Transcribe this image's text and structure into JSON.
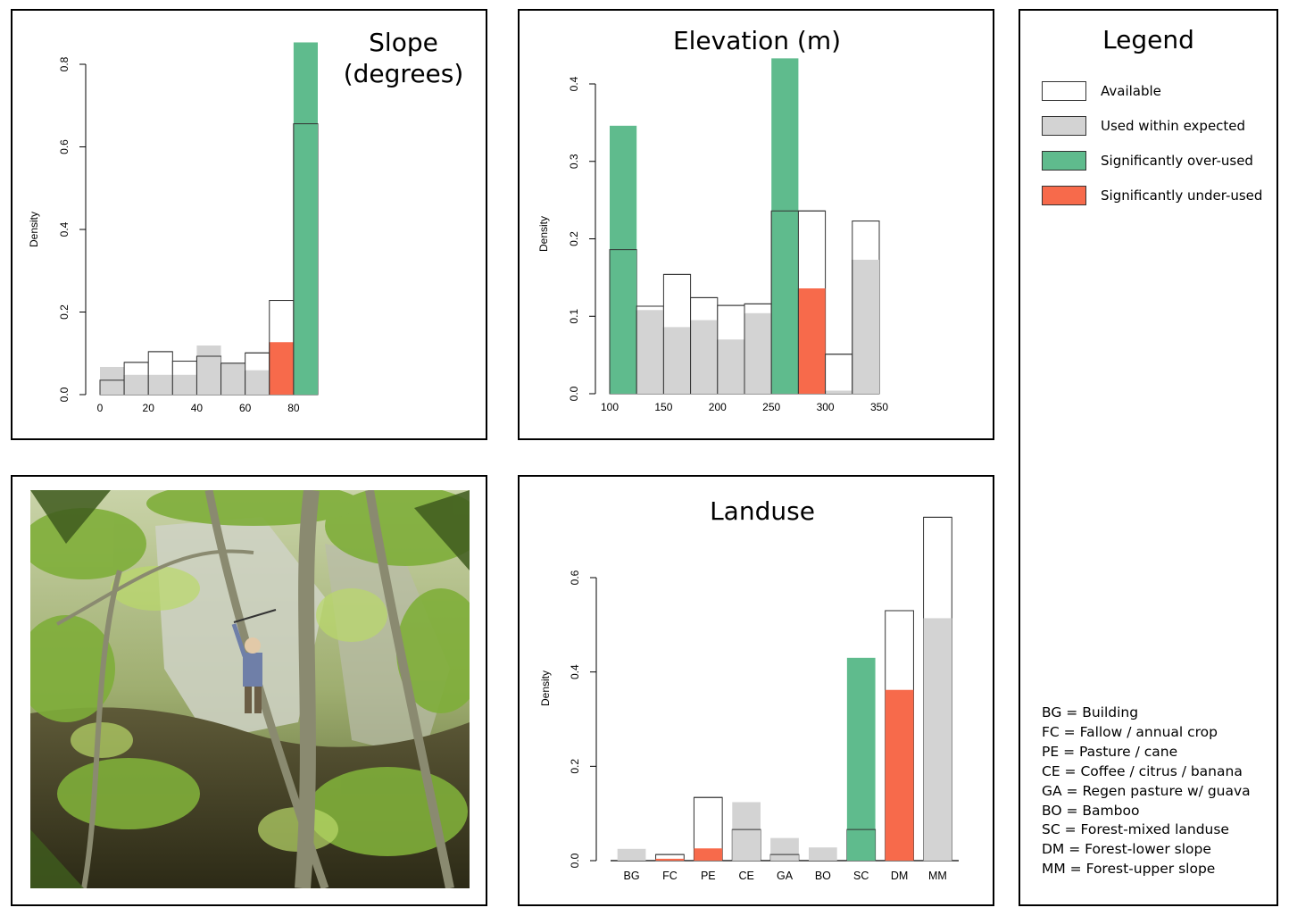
{
  "colors": {
    "available": "#ffffff",
    "used": "#d3d3d3",
    "over": "#5fbb8d",
    "under": "#f76a4b"
  },
  "legend": {
    "title": "Legend",
    "items": [
      {
        "label": "Available",
        "color": "#ffffff"
      },
      {
        "label": "Used within expected",
        "color": "#d3d3d3"
      },
      {
        "label": "Significantly over-used",
        "color": "#5fbb8d"
      },
      {
        "label": "Significantly under-used",
        "color": "#f76a4b"
      }
    ],
    "abbreviations": [
      "BG = Building",
      "FC = Fallow / annual crop",
      "PE = Pasture / cane",
      "CE = Coffee / citrus / banana",
      "GA = Regen pasture w/ guava",
      "BO = Bamboo",
      "SC = Forest-mixed landuse",
      "DM = Forest-lower slope",
      "MM = Forest-upper slope"
    ]
  },
  "photo": {
    "icon": "forest-field-photo"
  },
  "chart_data": [
    {
      "id": "slope",
      "type": "bar",
      "title_lines": [
        "Slope",
        "(degrees)"
      ],
      "ylabel": "Density",
      "xlabel": "",
      "ylim": [
        0,
        0.8
      ],
      "yticks": [
        0.0,
        0.2,
        0.4,
        0.6,
        0.8
      ],
      "ytick_labels": [
        "0.0",
        "0.2",
        "0.4",
        "0.6",
        "0.8"
      ],
      "xlim": [
        0,
        90
      ],
      "xticks": [
        0,
        20,
        40,
        60,
        80
      ],
      "xtick_labels": [
        "0",
        "20",
        "40",
        "60",
        "80"
      ],
      "bins": [
        {
          "x0": 0,
          "x1": 10,
          "available": 0.035,
          "used": 0.067,
          "status": "used"
        },
        {
          "x0": 10,
          "x1": 20,
          "available": 0.078,
          "used": 0.048,
          "status": "used"
        },
        {
          "x0": 20,
          "x1": 30,
          "available": 0.104,
          "used": 0.048,
          "status": "used"
        },
        {
          "x0": 30,
          "x1": 40,
          "available": 0.081,
          "used": 0.048,
          "status": "used"
        },
        {
          "x0": 40,
          "x1": 50,
          "available": 0.093,
          "used": 0.119,
          "status": "used"
        },
        {
          "x0": 50,
          "x1": 60,
          "available": 0.076,
          "used": 0.076,
          "status": "used"
        },
        {
          "x0": 60,
          "x1": 70,
          "available": 0.101,
          "used": 0.059,
          "status": "used"
        },
        {
          "x0": 70,
          "x1": 80,
          "available": 0.228,
          "used": 0.127,
          "status": "under"
        },
        {
          "x0": 80,
          "x1": 90,
          "available": 0.656,
          "used": 0.853,
          "status": "over"
        }
      ]
    },
    {
      "id": "elevation",
      "type": "bar",
      "title_lines": [
        "Elevation (m)"
      ],
      "ylabel": "Density",
      "xlabel": "",
      "ylim": [
        0,
        0.4
      ],
      "yticks": [
        0.0,
        0.1,
        0.2,
        0.3,
        0.4
      ],
      "ytick_labels": [
        "0.0",
        "0.1",
        "0.2",
        "0.3",
        "0.4"
      ],
      "xlim": [
        100,
        350
      ],
      "xticks": [
        100,
        150,
        200,
        250,
        300,
        350
      ],
      "xtick_labels": [
        "100",
        "150",
        "200",
        "250",
        "300",
        "350"
      ],
      "bins": [
        {
          "x0": 100,
          "x1": 125,
          "available": 0.186,
          "used": 0.346,
          "status": "over"
        },
        {
          "x0": 125,
          "x1": 150,
          "available": 0.113,
          "used": 0.108,
          "status": "used"
        },
        {
          "x0": 150,
          "x1": 175,
          "available": 0.154,
          "used": 0.086,
          "status": "used"
        },
        {
          "x0": 175,
          "x1": 200,
          "available": 0.124,
          "used": 0.095,
          "status": "used"
        },
        {
          "x0": 200,
          "x1": 225,
          "available": 0.114,
          "used": 0.07,
          "status": "used"
        },
        {
          "x0": 225,
          "x1": 250,
          "available": 0.116,
          "used": 0.104,
          "status": "used"
        },
        {
          "x0": 250,
          "x1": 275,
          "available": 0.236,
          "used": 0.433,
          "status": "over"
        },
        {
          "x0": 275,
          "x1": 300,
          "available": 0.236,
          "used": 0.136,
          "status": "under"
        },
        {
          "x0": 300,
          "x1": 325,
          "available": 0.051,
          "used": 0.004,
          "status": "used"
        },
        {
          "x0": 325,
          "x1": 350,
          "available": 0.223,
          "used": 0.173,
          "status": "used"
        }
      ]
    },
    {
      "id": "landuse",
      "type": "bar",
      "title_lines": [
        "Landuse"
      ],
      "ylabel": "Density",
      "xlabel": "",
      "ylim": [
        0,
        0.6
      ],
      "yticks": [
        0.0,
        0.2,
        0.4,
        0.6
      ],
      "ytick_labels": [
        "0.0",
        "0.2",
        "0.4",
        "0.6"
      ],
      "categories": [
        "BG",
        "FC",
        "PE",
        "CE",
        "GA",
        "BO",
        "SC",
        "DM",
        "MM"
      ],
      "bars": [
        {
          "category": "BG",
          "available": 0.0,
          "used": 0.025,
          "status": "used"
        },
        {
          "category": "FC",
          "available": 0.013,
          "used": 0.004,
          "status": "under"
        },
        {
          "category": "PE",
          "available": 0.134,
          "used": 0.026,
          "status": "under"
        },
        {
          "category": "CE",
          "available": 0.066,
          "used": 0.124,
          "status": "used"
        },
        {
          "category": "GA",
          "available": 0.013,
          "used": 0.048,
          "status": "used"
        },
        {
          "category": "BO",
          "available": 0.0,
          "used": 0.028,
          "status": "used"
        },
        {
          "category": "SC",
          "available": 0.066,
          "used": 0.43,
          "status": "over"
        },
        {
          "category": "DM",
          "available": 0.53,
          "used": 0.362,
          "status": "under"
        },
        {
          "category": "MM",
          "available": 0.728,
          "used": 0.514,
          "status": "used"
        }
      ]
    }
  ]
}
